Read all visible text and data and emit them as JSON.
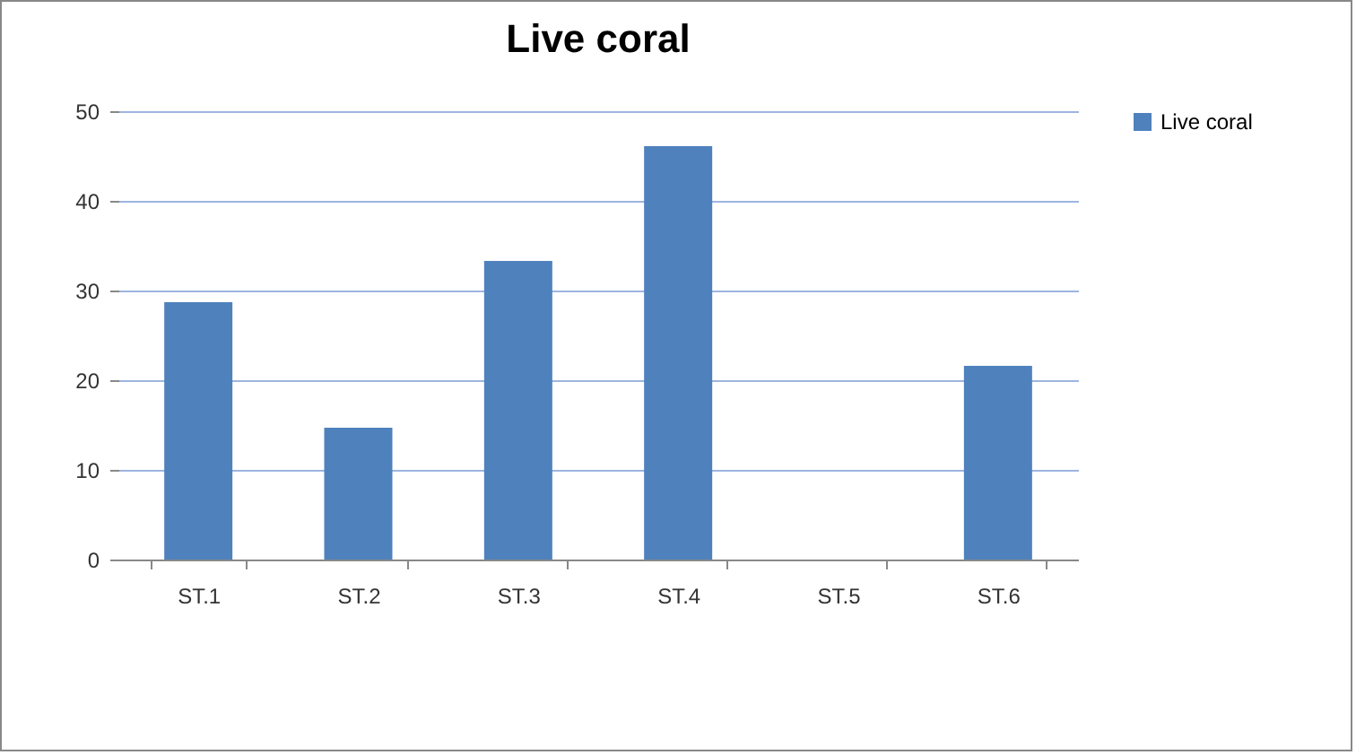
{
  "chart_data": {
    "type": "bar",
    "title": "Live coral",
    "categories": [
      "ST.1",
      "ST.2",
      "ST.3",
      "ST.4",
      "ST.5",
      "ST.6"
    ],
    "series": [
      {
        "name": "Live coral",
        "color": "#4f81bd",
        "values": [
          28.7,
          14.7,
          33.3,
          46.1,
          0,
          21.6
        ]
      }
    ],
    "ylim": [
      0,
      50
    ],
    "yticks": [
      0,
      10,
      20,
      30,
      40,
      50
    ],
    "grid": "y",
    "legend": "right"
  }
}
